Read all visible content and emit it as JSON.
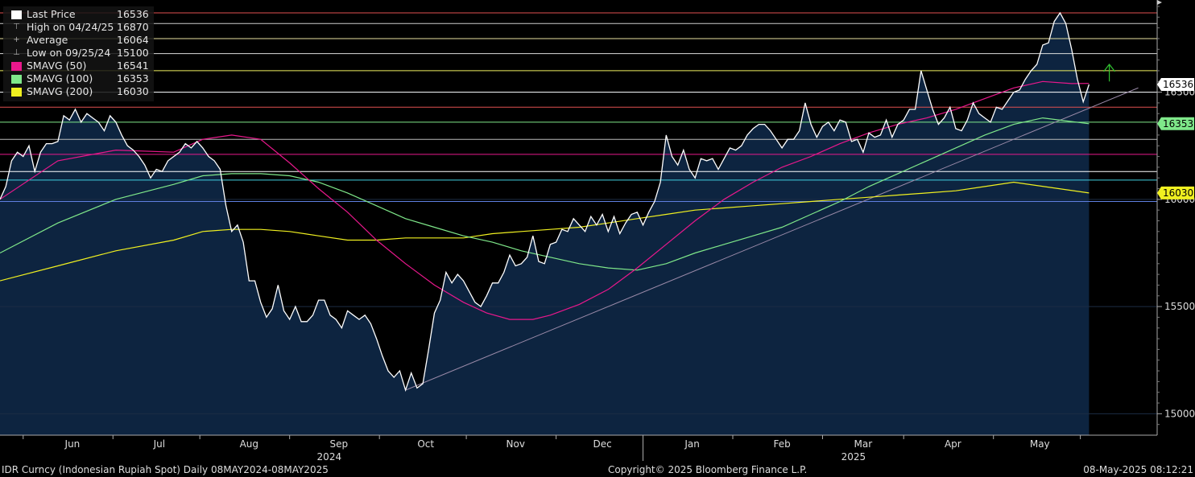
{
  "legend": [
    {
      "label": "Last Price",
      "value": "16536",
      "color": "#ffffff",
      "marker": "box"
    },
    {
      "label": "High on 04/24/25",
      "value": "16870",
      "color": "#aaaaaa",
      "marker": "high"
    },
    {
      "label": "Average",
      "value": "16064",
      "color": "#aaaaaa",
      "marker": "avg"
    },
    {
      "label": "Low on 09/25/24",
      "value": "15100",
      "color": "#aaaaaa",
      "marker": "low"
    },
    {
      "label": "SMAVG (50)",
      "value": "16541",
      "color": "#e8188c",
      "marker": "box"
    },
    {
      "label": "SMAVG (100)",
      "value": "16353",
      "color": "#7fe88a",
      "marker": "box"
    },
    {
      "label": "SMAVG (200)",
      "value": "16030",
      "color": "#f0f020",
      "marker": "box"
    }
  ],
  "footer": {
    "left": "IDR Curncy (Indonesian Rupiah Spot)  Daily 08MAY2024-08MAY2025",
    "center": "Copyright© 2025 Bloomberg Finance L.P.",
    "right": "08-May-2025 08:12:21"
  },
  "chart_data": {
    "type": "area",
    "ylim": [
      14900,
      16930
    ],
    "yticks": [
      15000,
      15500,
      16000,
      16500
    ],
    "xlim_day": [
      0,
      377
    ],
    "months": [
      {
        "label": "Jun",
        "day": 25
      },
      {
        "label": "Jul",
        "day": 55
      },
      {
        "label": "Aug",
        "day": 86
      },
      {
        "label": "Sep",
        "day": 117
      },
      {
        "label": "Oct",
        "day": 147
      },
      {
        "label": "Nov",
        "day": 178
      },
      {
        "label": "Dec",
        "day": 208
      },
      {
        "label": "Jan",
        "day": 239
      },
      {
        "label": "Feb",
        "day": 270
      },
      {
        "label": "Mar",
        "day": 298
      },
      {
        "label": "Apr",
        "day": 329
      },
      {
        "label": "May",
        "day": 359
      }
    ],
    "month_boundaries": [
      8,
      39,
      69,
      100,
      131,
      161,
      192,
      222,
      253,
      284,
      312,
      343,
      373
    ],
    "years": [
      {
        "label": "2024",
        "day": 117
      },
      {
        "label": "2025",
        "day": 298
      }
    ],
    "year_divider_day": 222,
    "last_price": [
      [
        0,
        16000
      ],
      [
        2,
        16060
      ],
      [
        4,
        16180
      ],
      [
        6,
        16220
      ],
      [
        8,
        16200
      ],
      [
        10,
        16250
      ],
      [
        12,
        16130
      ],
      [
        14,
        16220
      ],
      [
        16,
        16260
      ],
      [
        18,
        16260
      ],
      [
        20,
        16270
      ],
      [
        22,
        16390
      ],
      [
        24,
        16370
      ],
      [
        26,
        16420
      ],
      [
        28,
        16360
      ],
      [
        30,
        16400
      ],
      [
        32,
        16380
      ],
      [
        34,
        16360
      ],
      [
        36,
        16320
      ],
      [
        38,
        16390
      ],
      [
        40,
        16360
      ],
      [
        42,
        16300
      ],
      [
        44,
        16250
      ],
      [
        46,
        16230
      ],
      [
        48,
        16200
      ],
      [
        50,
        16160
      ],
      [
        52,
        16100
      ],
      [
        54,
        16140
      ],
      [
        56,
        16130
      ],
      [
        58,
        16180
      ],
      [
        60,
        16200
      ],
      [
        62,
        16220
      ],
      [
        64,
        16260
      ],
      [
        66,
        16240
      ],
      [
        68,
        16270
      ],
      [
        70,
        16240
      ],
      [
        72,
        16200
      ],
      [
        74,
        16180
      ],
      [
        76,
        16140
      ],
      [
        78,
        15970
      ],
      [
        80,
        15850
      ],
      [
        82,
        15880
      ],
      [
        84,
        15800
      ],
      [
        86,
        15620
      ],
      [
        88,
        15620
      ],
      [
        90,
        15520
      ],
      [
        92,
        15450
      ],
      [
        94,
        15490
      ],
      [
        96,
        15600
      ],
      [
        98,
        15480
      ],
      [
        100,
        15440
      ],
      [
        102,
        15500
      ],
      [
        104,
        15430
      ],
      [
        106,
        15430
      ],
      [
        108,
        15460
      ],
      [
        110,
        15530
      ],
      [
        112,
        15530
      ],
      [
        114,
        15460
      ],
      [
        116,
        15440
      ],
      [
        118,
        15400
      ],
      [
        120,
        15480
      ],
      [
        122,
        15460
      ],
      [
        124,
        15440
      ],
      [
        126,
        15460
      ],
      [
        128,
        15420
      ],
      [
        130,
        15350
      ],
      [
        132,
        15270
      ],
      [
        134,
        15200
      ],
      [
        136,
        15170
      ],
      [
        138,
        15200
      ],
      [
        140,
        15110
      ],
      [
        142,
        15190
      ],
      [
        144,
        15120
      ],
      [
        146,
        15140
      ],
      [
        148,
        15300
      ],
      [
        150,
        15470
      ],
      [
        152,
        15530
      ],
      [
        154,
        15660
      ],
      [
        156,
        15610
      ],
      [
        158,
        15650
      ],
      [
        160,
        15620
      ],
      [
        162,
        15570
      ],
      [
        164,
        15520
      ],
      [
        166,
        15500
      ],
      [
        168,
        15550
      ],
      [
        170,
        15610
      ],
      [
        172,
        15610
      ],
      [
        174,
        15660
      ],
      [
        176,
        15740
      ],
      [
        178,
        15690
      ],
      [
        180,
        15700
      ],
      [
        182,
        15730
      ],
      [
        184,
        15830
      ],
      [
        186,
        15710
      ],
      [
        188,
        15700
      ],
      [
        190,
        15790
      ],
      [
        192,
        15800
      ],
      [
        194,
        15860
      ],
      [
        196,
        15850
      ],
      [
        198,
        15910
      ],
      [
        200,
        15880
      ],
      [
        202,
        15850
      ],
      [
        204,
        15920
      ],
      [
        206,
        15880
      ],
      [
        208,
        15930
      ],
      [
        210,
        15850
      ],
      [
        212,
        15920
      ],
      [
        214,
        15840
      ],
      [
        216,
        15890
      ],
      [
        218,
        15930
      ],
      [
        220,
        15940
      ],
      [
        222,
        15880
      ],
      [
        224,
        15940
      ],
      [
        226,
        15990
      ],
      [
        228,
        16080
      ],
      [
        230,
        16300
      ],
      [
        232,
        16200
      ],
      [
        234,
        16160
      ],
      [
        236,
        16230
      ],
      [
        238,
        16140
      ],
      [
        240,
        16100
      ],
      [
        242,
        16190
      ],
      [
        244,
        16180
      ],
      [
        246,
        16190
      ],
      [
        248,
        16140
      ],
      [
        250,
        16190
      ],
      [
        252,
        16240
      ],
      [
        254,
        16230
      ],
      [
        256,
        16250
      ],
      [
        258,
        16300
      ],
      [
        260,
        16330
      ],
      [
        262,
        16350
      ],
      [
        264,
        16350
      ],
      [
        266,
        16320
      ],
      [
        268,
        16280
      ],
      [
        270,
        16240
      ],
      [
        272,
        16280
      ],
      [
        274,
        16280
      ],
      [
        276,
        16320
      ],
      [
        278,
        16450
      ],
      [
        280,
        16350
      ],
      [
        282,
        16290
      ],
      [
        284,
        16340
      ],
      [
        286,
        16360
      ],
      [
        288,
        16320
      ],
      [
        290,
        16370
      ],
      [
        292,
        16360
      ],
      [
        294,
        16270
      ],
      [
        296,
        16280
      ],
      [
        298,
        16220
      ],
      [
        300,
        16310
      ],
      [
        302,
        16290
      ],
      [
        304,
        16300
      ],
      [
        306,
        16370
      ],
      [
        308,
        16290
      ],
      [
        310,
        16350
      ],
      [
        312,
        16370
      ],
      [
        314,
        16420
      ],
      [
        316,
        16420
      ],
      [
        318,
        16600
      ],
      [
        320,
        16510
      ],
      [
        322,
        16420
      ],
      [
        324,
        16350
      ],
      [
        326,
        16380
      ],
      [
        328,
        16430
      ],
      [
        330,
        16330
      ],
      [
        332,
        16320
      ],
      [
        334,
        16370
      ],
      [
        336,
        16450
      ],
      [
        338,
        16400
      ],
      [
        340,
        16380
      ],
      [
        342,
        16360
      ],
      [
        344,
        16430
      ],
      [
        346,
        16420
      ],
      [
        348,
        16460
      ],
      [
        350,
        16500
      ],
      [
        352,
        16510
      ],
      [
        354,
        16560
      ],
      [
        356,
        16600
      ],
      [
        358,
        16630
      ],
      [
        360,
        16720
      ],
      [
        362,
        16730
      ],
      [
        364,
        16830
      ],
      [
        366,
        16870
      ],
      [
        368,
        16820
      ],
      [
        370,
        16700
      ],
      [
        372,
        16560
      ],
      [
        374,
        16455
      ],
      [
        376,
        16536
      ]
    ],
    "smavg50": [
      [
        0,
        16000
      ],
      [
        20,
        16180
      ],
      [
        40,
        16230
      ],
      [
        60,
        16220
      ],
      [
        70,
        16280
      ],
      [
        80,
        16300
      ],
      [
        90,
        16280
      ],
      [
        100,
        16170
      ],
      [
        110,
        16050
      ],
      [
        120,
        15940
      ],
      [
        130,
        15810
      ],
      [
        140,
        15700
      ],
      [
        150,
        15600
      ],
      [
        160,
        15520
      ],
      [
        168,
        15470
      ],
      [
        176,
        15440
      ],
      [
        184,
        15440
      ],
      [
        190,
        15460
      ],
      [
        200,
        15510
      ],
      [
        210,
        15580
      ],
      [
        220,
        15680
      ],
      [
        230,
        15790
      ],
      [
        240,
        15900
      ],
      [
        250,
        16000
      ],
      [
        260,
        16080
      ],
      [
        270,
        16150
      ],
      [
        280,
        16200
      ],
      [
        290,
        16260
      ],
      [
        300,
        16310
      ],
      [
        310,
        16350
      ],
      [
        320,
        16380
      ],
      [
        330,
        16420
      ],
      [
        340,
        16470
      ],
      [
        350,
        16520
      ],
      [
        360,
        16550
      ],
      [
        370,
        16540
      ],
      [
        376,
        16541
      ]
    ],
    "smavg100": [
      [
        0,
        15750
      ],
      [
        20,
        15890
      ],
      [
        40,
        16000
      ],
      [
        60,
        16070
      ],
      [
        70,
        16110
      ],
      [
        80,
        16120
      ],
      [
        90,
        16120
      ],
      [
        100,
        16110
      ],
      [
        110,
        16080
      ],
      [
        120,
        16030
      ],
      [
        130,
        15970
      ],
      [
        140,
        15910
      ],
      [
        150,
        15870
      ],
      [
        160,
        15830
      ],
      [
        170,
        15800
      ],
      [
        180,
        15760
      ],
      [
        190,
        15730
      ],
      [
        200,
        15700
      ],
      [
        210,
        15680
      ],
      [
        220,
        15670
      ],
      [
        230,
        15700
      ],
      [
        240,
        15750
      ],
      [
        250,
        15790
      ],
      [
        260,
        15830
      ],
      [
        270,
        15870
      ],
      [
        280,
        15930
      ],
      [
        290,
        15990
      ],
      [
        300,
        16060
      ],
      [
        310,
        16120
      ],
      [
        320,
        16180
      ],
      [
        330,
        16240
      ],
      [
        340,
        16300
      ],
      [
        350,
        16350
      ],
      [
        360,
        16380
      ],
      [
        376,
        16353
      ]
    ],
    "smavg200": [
      [
        0,
        15620
      ],
      [
        20,
        15690
      ],
      [
        40,
        15760
      ],
      [
        60,
        15810
      ],
      [
        70,
        15850
      ],
      [
        80,
        15860
      ],
      [
        90,
        15860
      ],
      [
        100,
        15850
      ],
      [
        110,
        15830
      ],
      [
        120,
        15810
      ],
      [
        130,
        15810
      ],
      [
        140,
        15820
      ],
      [
        150,
        15820
      ],
      [
        160,
        15820
      ],
      [
        170,
        15840
      ],
      [
        180,
        15850
      ],
      [
        190,
        15860
      ],
      [
        200,
        15870
      ],
      [
        210,
        15890
      ],
      [
        220,
        15910
      ],
      [
        230,
        15930
      ],
      [
        240,
        15950
      ],
      [
        250,
        15960
      ],
      [
        260,
        15970
      ],
      [
        270,
        15980
      ],
      [
        280,
        15990
      ],
      [
        290,
        16000
      ],
      [
        300,
        16010
      ],
      [
        310,
        16020
      ],
      [
        320,
        16030
      ],
      [
        330,
        16040
      ],
      [
        340,
        16060
      ],
      [
        350,
        16080
      ],
      [
        376,
        16030
      ]
    ],
    "trendline": [
      [
        140,
        15110
      ],
      [
        393,
        16520
      ]
    ],
    "hlines": [
      {
        "value": 16870,
        "color": "#e05050"
      },
      {
        "value": 16820,
        "color": "#cccccc"
      },
      {
        "value": 16750,
        "color": "#e8e0a0"
      },
      {
        "value": 16680,
        "color": "#dddddd"
      },
      {
        "value": 16600,
        "color": "#f0f060"
      },
      {
        "value": 16500,
        "color": "#ffffff"
      },
      {
        "value": 16430,
        "color": "#e05050"
      },
      {
        "value": 16360,
        "color": "#7fe88a"
      },
      {
        "value": 16280,
        "color": "#bbbbbb"
      },
      {
        "value": 16210,
        "color": "#e8188c"
      },
      {
        "value": 16130,
        "color": "#ffffff"
      },
      {
        "value": 16090,
        "color": "#40d0e0"
      },
      {
        "value": 15990,
        "color": "#6080e0"
      }
    ],
    "tags": [
      {
        "value": "16536",
        "y": 16536,
        "bg": "#ffffff",
        "fg": "#000000"
      },
      {
        "value": "16353",
        "y": 16353,
        "bg": "#7fe88a",
        "fg": "#000000"
      },
      {
        "value": "16030",
        "y": 16030,
        "bg": "#f0f020",
        "fg": "#000000"
      }
    ],
    "arrow": {
      "day": 383,
      "from": 16550,
      "to": 16630,
      "color": "#30c030"
    }
  }
}
